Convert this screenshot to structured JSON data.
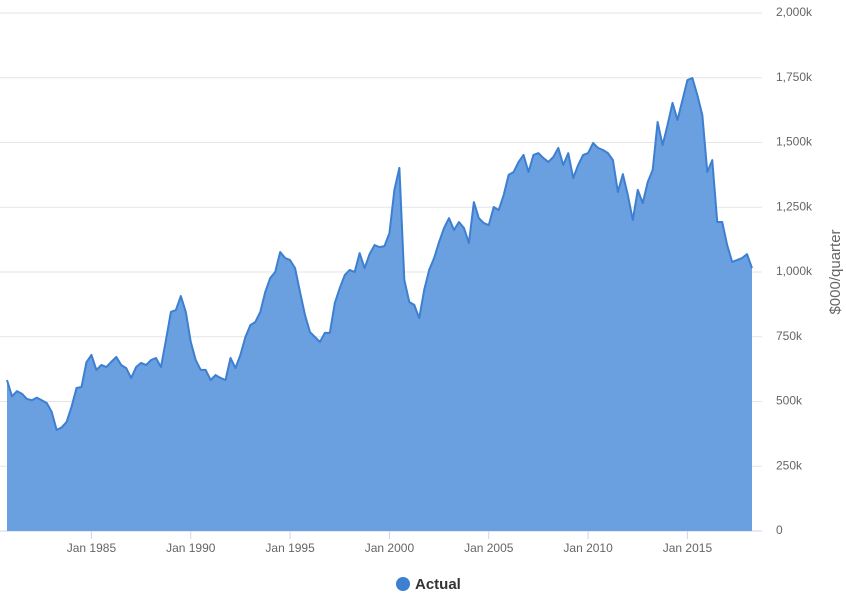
{
  "chart_data": {
    "type": "area",
    "y_axis_label": "$000/quarter",
    "x": [
      1980.75,
      1981,
      1981.25,
      1981.5,
      1981.75,
      1982,
      1982.25,
      1982.5,
      1982.75,
      1983,
      1983.25,
      1983.5,
      1983.75,
      1984,
      1984.25,
      1984.5,
      1984.75,
      1985,
      1985.25,
      1985.5,
      1985.75,
      1986,
      1986.25,
      1986.5,
      1986.75,
      1987,
      1987.25,
      1987.5,
      1987.75,
      1988,
      1988.25,
      1988.5,
      1988.75,
      1989,
      1989.25,
      1989.5,
      1989.75,
      1990,
      1990.25,
      1990.5,
      1990.75,
      1991,
      1991.25,
      1991.5,
      1991.75,
      1992,
      1992.25,
      1992.5,
      1992.75,
      1993,
      1993.25,
      1993.5,
      1993.75,
      1994,
      1994.25,
      1994.5,
      1994.75,
      1995,
      1995.25,
      1995.5,
      1995.75,
      1996,
      1996.25,
      1996.5,
      1996.75,
      1997,
      1997.25,
      1997.5,
      1997.75,
      1998,
      1998.25,
      1998.5,
      1998.75,
      1999,
      1999.25,
      1999.5,
      1999.75,
      2000,
      2000.25,
      2000.5,
      2000.75,
      2001,
      2001.25,
      2001.5,
      2001.75,
      2002,
      2002.25,
      2002.5,
      2002.75,
      2003,
      2003.25,
      2003.5,
      2003.75,
      2004,
      2004.25,
      2004.5,
      2004.75,
      2005,
      2005.25,
      2005.5,
      2005.75,
      2006,
      2006.25,
      2006.5,
      2006.75,
      2007,
      2007.25,
      2007.5,
      2007.75,
      2008,
      2008.25,
      2008.5,
      2008.75,
      2009,
      2009.25,
      2009.5,
      2009.75,
      2010,
      2010.25,
      2010.5,
      2010.75,
      2011,
      2011.25,
      2011.5,
      2011.75,
      2012,
      2012.25,
      2012.5,
      2012.75,
      2013,
      2013.25,
      2013.5,
      2013.75,
      2014,
      2014.25,
      2014.5,
      2014.75,
      2015,
      2015.25,
      2015.5,
      2015.75,
      2016,
      2016.25,
      2016.5,
      2016.75,
      2017,
      2017.25,
      2017.5,
      2017.75,
      2018,
      2018.25
    ],
    "series": [
      {
        "name": "Actual",
        "color": "#6a9fe0",
        "line_color": "#3d7fd1",
        "values": [
          583000,
          520000,
          540000,
          530000,
          510000,
          505000,
          515000,
          505000,
          494000,
          460000,
          390000,
          400000,
          421000,
          480000,
          552000,
          556000,
          652000,
          680000,
          622000,
          641000,
          633000,
          653000,
          672000,
          641000,
          629000,
          591000,
          633000,
          649000,
          641000,
          660000,
          668000,
          633000,
          737000,
          846000,
          853000,
          907000,
          846000,
          730000,
          660000,
          622000,
          622000,
          583000,
          602000,
          591000,
          583000,
          668000,
          629000,
          680000,
          749000,
          795000,
          807000,
          846000,
          923000,
          977000,
          1000000,
          1077000,
          1054000,
          1046000,
          1015000,
          923000,
          834000,
          768000,
          749000,
          730000,
          765000,
          765000,
          880000,
          938000,
          988000,
          1008000,
          1000000,
          1073000,
          1015000,
          1069000,
          1104000,
          1096000,
          1100000,
          1150000,
          1317000,
          1402000,
          969000,
          884000,
          873000,
          822000,
          931000,
          1008000,
          1054000,
          1116000,
          1170000,
          1208000,
          1162000,
          1193000,
          1170000,
          1112000,
          1270000,
          1208000,
          1189000,
          1181000,
          1251000,
          1239000,
          1297000,
          1375000,
          1386000,
          1425000,
          1452000,
          1386000,
          1452000,
          1459000,
          1440000,
          1425000,
          1444000,
          1479000,
          1413000,
          1459000,
          1363000,
          1413000,
          1452000,
          1459000,
          1498000,
          1479000,
          1471000,
          1459000,
          1432000,
          1309000,
          1378000,
          1297000,
          1201000,
          1317000,
          1266000,
          1347000,
          1394000,
          1579000,
          1490000,
          1568000,
          1653000,
          1587000,
          1664000,
          1741000,
          1749000,
          1683000,
          1606000,
          1386000,
          1432000,
          1193000,
          1193000,
          1104000,
          1039000,
          1046000,
          1054000,
          1069000,
          1015000
        ]
      }
    ],
    "xlim": [
      1980.75,
      2018.25
    ],
    "xticks": [
      {
        "value": 1985,
        "label": "Jan 1985"
      },
      {
        "value": 1990,
        "label": "Jan 1990"
      },
      {
        "value": 1995,
        "label": "Jan 1995"
      },
      {
        "value": 2000,
        "label": "Jan 2000"
      },
      {
        "value": 2005,
        "label": "Jan 2005"
      },
      {
        "value": 2010,
        "label": "Jan 2010"
      },
      {
        "value": 2015,
        "label": "Jan 2015"
      }
    ],
    "ylim": [
      0,
      2000000
    ],
    "yticks": [
      0,
      {
        "value": 250000,
        "label": "250k"
      },
      {
        "value": 500000,
        "label": "500k"
      },
      {
        "value": 750000,
        "label": "750k"
      },
      {
        "value": 1000000,
        "label": "1,000k"
      },
      {
        "value": 1250000,
        "label": "1,250k"
      },
      {
        "value": 1500000,
        "label": "1,500k"
      },
      {
        "value": 1750000,
        "label": "1,750k"
      },
      {
        "value": 2000000,
        "label": "2,000k"
      }
    ],
    "grid": true,
    "legend": "bottom"
  }
}
